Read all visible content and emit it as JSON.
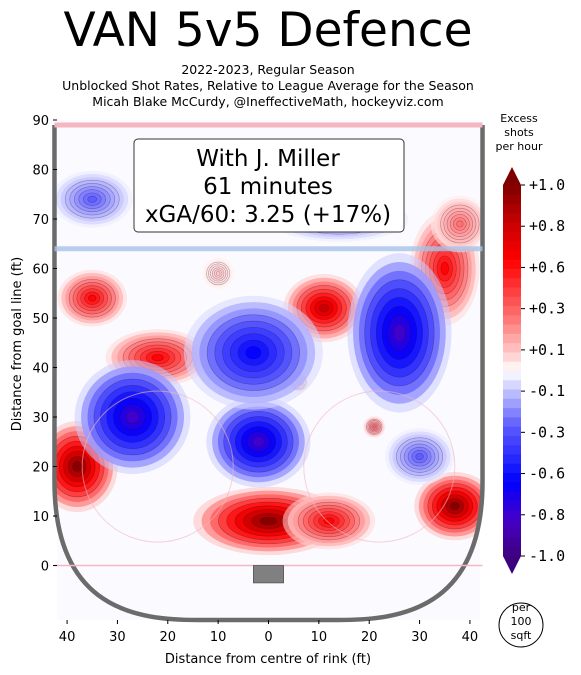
{
  "chart_data": {
    "type": "heatmap",
    "title": "VAN 5v5 Defence",
    "subtitle_lines": [
      "2022-2023, Regular Season",
      "Unblocked Shot Rates, Relative to League Average for the Season",
      "Micah Blake McCurdy, @IneffectiveMath, hockeyviz.com"
    ],
    "xlabel": "Distance from centre of rink (ft)",
    "ylabel": "Distance from goal line (ft)",
    "xlim": [
      -42,
      42
    ],
    "ylim": [
      -11,
      90
    ],
    "x_ticks": [
      -40,
      -30,
      -20,
      -10,
      0,
      10,
      20,
      30,
      40
    ],
    "x_tick_labels": [
      "40",
      "30",
      "20",
      "10",
      "0",
      "10",
      "20",
      "30",
      "40"
    ],
    "y_ticks": [
      0,
      10,
      20,
      30,
      40,
      50,
      60,
      70,
      80,
      90
    ],
    "y_tick_labels": [
      "0",
      "10",
      "20",
      "30",
      "40",
      "50",
      "60",
      "70",
      "80",
      "90"
    ],
    "annotation": [
      "With J. Miller",
      "61 minutes",
      "xGA/60: 3.25 (+17%)"
    ],
    "colorbar": {
      "title": [
        "Excess",
        "shots",
        "per hour"
      ],
      "range": [
        -1.0,
        1.0
      ],
      "labels": [
        {
          "value": 1.0,
          "text": "+1.0"
        },
        {
          "value": 0.8,
          "text": "+0.8"
        },
        {
          "value": 0.6,
          "text": "+0.6"
        },
        {
          "value": 0.3,
          "text": "+0.3"
        },
        {
          "value": 0.1,
          "text": "+0.1"
        },
        {
          "value": -0.1,
          "text": "-0.1"
        },
        {
          "value": -0.3,
          "text": "-0.3"
        },
        {
          "value": -0.6,
          "text": "-0.6"
        },
        {
          "value": -0.8,
          "text": "-0.8"
        },
        {
          "value": -1.0,
          "text": "-1.0"
        }
      ],
      "unit": [
        "per",
        "100",
        "sqft"
      ]
    },
    "colors": {
      "max_red": "#7f0000",
      "red": "#ff0000",
      "pale_red": "#ffc8c8",
      "neutral": "#ffffff",
      "pale_blue": "#c8c8ff",
      "blue": "#0000ff",
      "max_blue": "#3f007f"
    },
    "hotspots": [
      {
        "x": -38,
        "y": 20,
        "value": 1.0,
        "rx": 7,
        "ry": 8
      },
      {
        "x": 0,
        "y": 9,
        "value": 1.0,
        "rx": 13,
        "ry": 6
      },
      {
        "x": 12,
        "y": 9,
        "value": 0.6,
        "rx": 8,
        "ry": 5
      },
      {
        "x": 37,
        "y": 12,
        "value": 1.0,
        "rx": 7,
        "ry": 6
      },
      {
        "x": -22,
        "y": 42,
        "value": 0.6,
        "rx": 9,
        "ry": 5
      },
      {
        "x": -35,
        "y": 54,
        "value": 0.6,
        "rx": 6,
        "ry": 5
      },
      {
        "x": 11,
        "y": 52,
        "value": 0.8,
        "rx": 7,
        "ry": 6
      },
      {
        "x": 35,
        "y": 60,
        "value": 0.6,
        "rx": 6,
        "ry": 10
      },
      {
        "x": 38,
        "y": 69,
        "value": 0.3,
        "rx": 5,
        "ry": 5
      },
      {
        "x": -10,
        "y": 59,
        "value": 0.1,
        "rx": 3,
        "ry": 3
      },
      {
        "x": 6,
        "y": 37,
        "value": 0.1,
        "rx": 2,
        "ry": 2
      },
      {
        "x": 21,
        "y": 28,
        "value": 0.3,
        "rx": 2,
        "ry": 2
      },
      {
        "x": -27,
        "y": 30,
        "value": -0.8,
        "rx": 10,
        "ry": 10
      },
      {
        "x": -2,
        "y": 25,
        "value": -0.8,
        "rx": 9,
        "ry": 8
      },
      {
        "x": 26,
        "y": 47,
        "value": -0.8,
        "rx": 9,
        "ry": 14
      },
      {
        "x": -3,
        "y": 43,
        "value": -0.6,
        "rx": 12,
        "ry": 10
      },
      {
        "x": -35,
        "y": 74,
        "value": -0.3,
        "rx": 7,
        "ry": 5
      },
      {
        "x": 14,
        "y": 70,
        "value": -0.3,
        "rx": 12,
        "ry": 4
      },
      {
        "x": 30,
        "y": 22,
        "value": -0.3,
        "rx": 6,
        "ry": 5
      }
    ]
  }
}
